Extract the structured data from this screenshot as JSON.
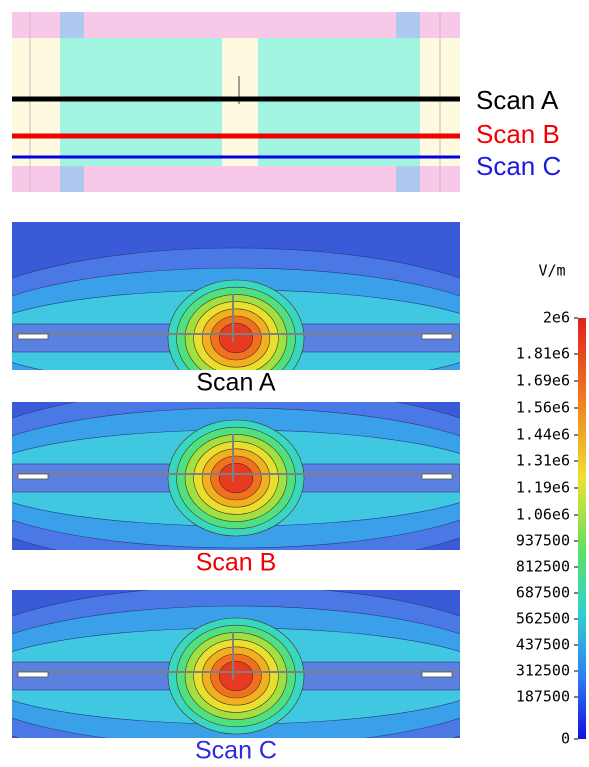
{
  "diagram": {
    "scan_labels": [
      "Scan A",
      "Scan B",
      "Scan C"
    ]
  },
  "field_plots": [
    {
      "caption": "Scan A"
    },
    {
      "caption": "Scan B"
    },
    {
      "caption": "Scan C"
    }
  ],
  "colorbar": {
    "unit": "V/m",
    "ticks": [
      "2e6",
      "1.81e6",
      "1.69e6",
      "1.56e6",
      "1.44e6",
      "1.31e6",
      "1.19e6",
      "1.06e6",
      "937500",
      "812500",
      "687500",
      "562500",
      "437500",
      "312500",
      "187500",
      "0"
    ]
  }
}
